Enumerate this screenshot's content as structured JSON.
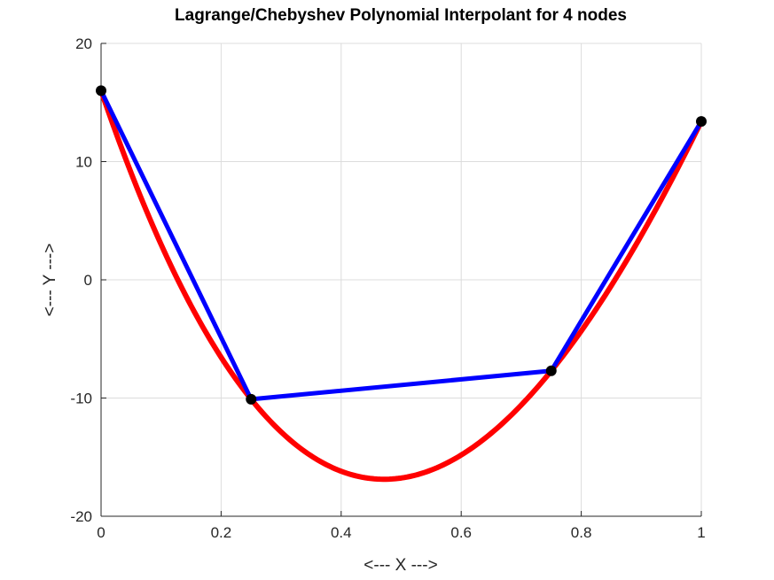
{
  "chart_data": {
    "type": "line",
    "title": "Lagrange/Chebyshev Polynomial Interpolant for 4 nodes",
    "xlabel": "<--- X --->",
    "ylabel": "<--- Y --->",
    "xlim": [
      0,
      1
    ],
    "ylim": [
      -20,
      20
    ],
    "xticks": [
      0,
      0.2,
      0.4,
      0.6,
      0.8,
      1
    ],
    "xtick_labels": [
      "0",
      "0.2",
      "0.4",
      "0.6",
      "0.8",
      "1"
    ],
    "yticks": [
      -20,
      -10,
      0,
      10,
      20
    ],
    "ytick_labels": [
      "-20",
      "-10",
      "0",
      "10",
      "20"
    ],
    "grid": true,
    "nodes": {
      "x": [
        0,
        0.25,
        0.75,
        1
      ],
      "y": [
        16,
        -10.1,
        -7.7,
        13.4
      ]
    },
    "series": [
      {
        "name": "interpolant",
        "color": "#ff0000",
        "kind": "polynomial through nodes"
      },
      {
        "name": "piecewise linear",
        "color": "#0000ff",
        "kind": "segments through nodes"
      },
      {
        "name": "nodes",
        "color": "#000000",
        "kind": "markers"
      }
    ]
  }
}
